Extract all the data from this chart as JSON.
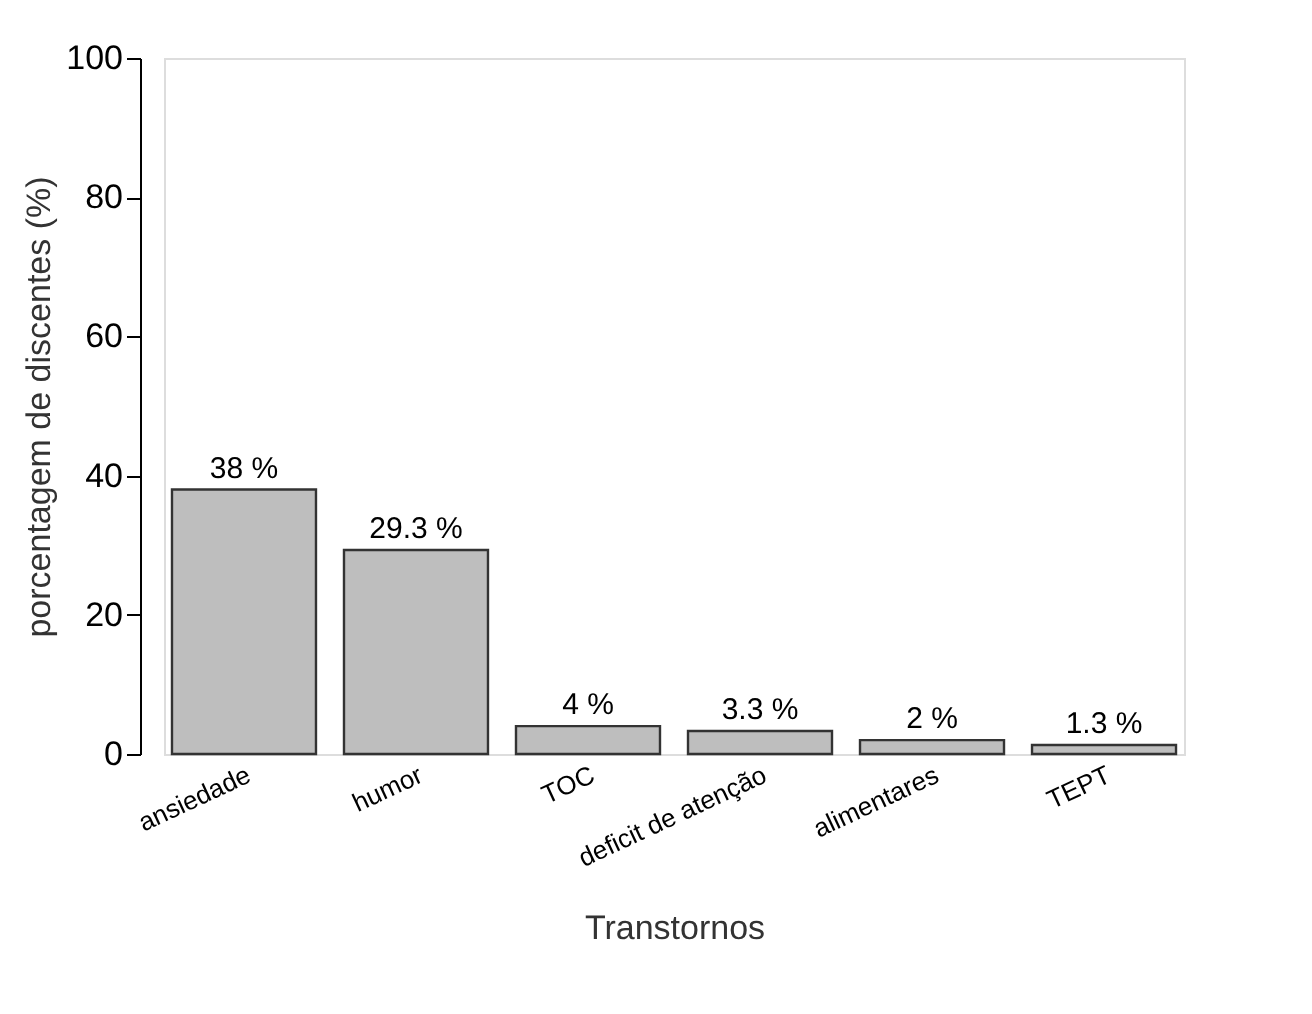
{
  "chart_data": {
    "type": "bar",
    "xlabel": "Transtornos",
    "ylabel": "porcentagem de discentes (%)",
    "categories": [
      "ansiedade",
      "humor",
      "TOC",
      "deficit de atenção",
      "alimentares",
      "TEPT"
    ],
    "values": [
      38,
      29.3,
      4,
      3.3,
      2,
      1.3
    ],
    "value_labels": [
      "38 %",
      "29.3 %",
      "4 %",
      "3.3 %",
      "2 %",
      "1.3 %"
    ],
    "color": "#bebebe",
    "ylim": [
      0,
      100
    ],
    "yticks": [
      0,
      20,
      40,
      60,
      80,
      100
    ],
    "grid": false
  }
}
